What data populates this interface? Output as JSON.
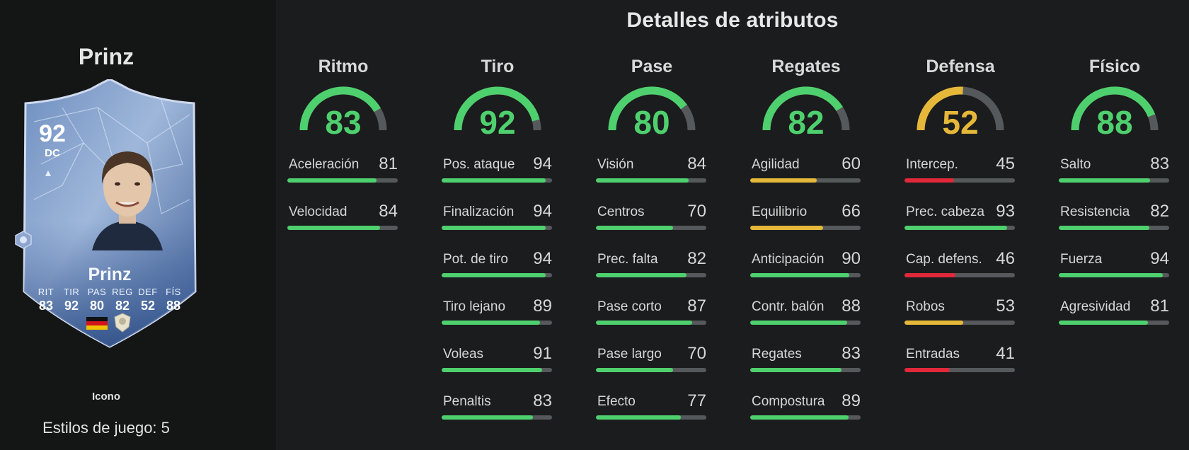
{
  "player": {
    "name": "Prinz",
    "card_type": "Icono",
    "playstyles": "Estilos de juego: 5",
    "rating": "92",
    "position": "DC",
    "card_name": "Prinz",
    "card_stats": [
      {
        "label": "RIT",
        "value": "83"
      },
      {
        "label": "TIR",
        "value": "92"
      },
      {
        "label": "PAS",
        "value": "80"
      },
      {
        "label": "REG",
        "value": "82"
      },
      {
        "label": "DEF",
        "value": "52"
      },
      {
        "label": "FÍS",
        "value": "88"
      }
    ]
  },
  "section_title": "Detalles de atributos",
  "colors": {
    "high": "#4fd06e",
    "mid": "#e6b83a",
    "low": "#e0283a",
    "track": "#56595b"
  },
  "categories": [
    {
      "name": "Ritmo",
      "value": 83,
      "attributes": [
        {
          "label": "Aceleración",
          "value": 81
        },
        {
          "label": "Velocidad",
          "value": 84
        }
      ]
    },
    {
      "name": "Tiro",
      "value": 92,
      "attributes": [
        {
          "label": "Pos. ataque",
          "value": 94
        },
        {
          "label": "Finalización",
          "value": 94
        },
        {
          "label": "Pot. de tiro",
          "value": 94
        },
        {
          "label": "Tiro lejano",
          "value": 89
        },
        {
          "label": "Voleas",
          "value": 91
        },
        {
          "label": "Penaltis",
          "value": 83
        }
      ]
    },
    {
      "name": "Pase",
      "value": 80,
      "attributes": [
        {
          "label": "Visión",
          "value": 84
        },
        {
          "label": "Centros",
          "value": 70
        },
        {
          "label": "Prec. falta",
          "value": 82
        },
        {
          "label": "Pase corto",
          "value": 87
        },
        {
          "label": "Pase largo",
          "value": 70
        },
        {
          "label": "Efecto",
          "value": 77
        }
      ]
    },
    {
      "name": "Regates",
      "value": 82,
      "attributes": [
        {
          "label": "Agilidad",
          "value": 60
        },
        {
          "label": "Equilibrio",
          "value": 66
        },
        {
          "label": "Anticipación",
          "value": 90
        },
        {
          "label": "Contr. balón",
          "value": 88
        },
        {
          "label": "Regates",
          "value": 83
        },
        {
          "label": "Compostura",
          "value": 89
        }
      ]
    },
    {
      "name": "Defensa",
      "value": 52,
      "attributes": [
        {
          "label": "Intercep.",
          "value": 45
        },
        {
          "label": "Prec. cabeza",
          "value": 93
        },
        {
          "label": "Cap. defens.",
          "value": 46
        },
        {
          "label": "Robos",
          "value": 53
        },
        {
          "label": "Entradas",
          "value": 41
        }
      ]
    },
    {
      "name": "Físico",
      "value": 88,
      "attributes": [
        {
          "label": "Salto",
          "value": 83
        },
        {
          "label": "Resistencia",
          "value": 82
        },
        {
          "label": "Fuerza",
          "value": 94
        },
        {
          "label": "Agresividad",
          "value": 81
        }
      ]
    }
  ]
}
